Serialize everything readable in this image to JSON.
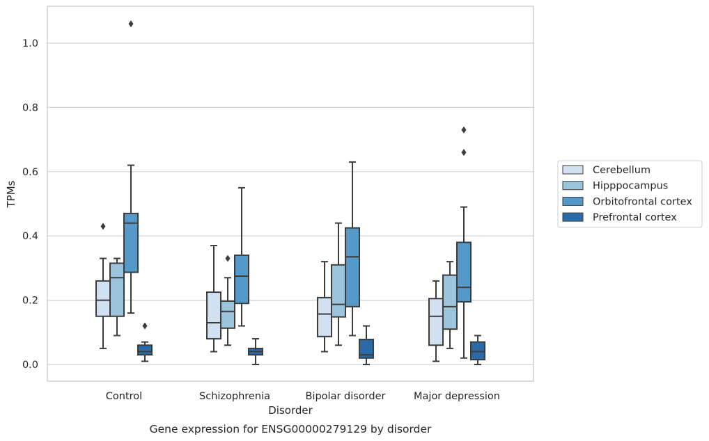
{
  "caption": "Gene expression for ENSG00000279129 by disorder",
  "colors": {
    "Cerebellum": "#d1e1f1",
    "Hipppocampus": "#9cc4dd",
    "Orbitofrontal cortex": "#5499c7",
    "Prefrontal cortex": "#2a6aa8",
    "line": "#3c3c3c",
    "grid": "#d0d0d0",
    "spine": "#c8c8c8"
  },
  "chart_data": {
    "type": "box",
    "title": "",
    "xlabel": "Disorder",
    "ylabel": "TPMs",
    "ylim": [
      -0.05,
      1.115
    ],
    "yticks": [
      0.0,
      0.2,
      0.4,
      0.6,
      0.8,
      1.0
    ],
    "ytick_labels": [
      "0.0",
      "0.2",
      "0.4",
      "0.6",
      "0.8",
      "1.0"
    ],
    "grid": "horizontal",
    "legend_position": "outside-right",
    "categories": [
      "Control",
      "Schizophrenia",
      "Bipolar disorder",
      "Major depression"
    ],
    "series": [
      {
        "name": "Cerebellum",
        "boxes": [
          {
            "whisker_low": 0.05,
            "q1": 0.15,
            "median": 0.2,
            "q3": 0.26,
            "whisker_high": 0.33,
            "outliers": [
              0.43
            ]
          },
          {
            "whisker_low": 0.04,
            "q1": 0.08,
            "median": 0.13,
            "q3": 0.225,
            "whisker_high": 0.37,
            "outliers": []
          },
          {
            "whisker_low": 0.04,
            "q1": 0.087,
            "median": 0.157,
            "q3": 0.208,
            "whisker_high": 0.32,
            "outliers": []
          },
          {
            "whisker_low": 0.01,
            "q1": 0.06,
            "median": 0.15,
            "q3": 0.205,
            "whisker_high": 0.26,
            "outliers": []
          }
        ]
      },
      {
        "name": "Hipppocampus",
        "boxes": [
          {
            "whisker_low": 0.09,
            "q1": 0.15,
            "median": 0.27,
            "q3": 0.315,
            "whisker_high": 0.33,
            "outliers": []
          },
          {
            "whisker_low": 0.06,
            "q1": 0.113,
            "median": 0.165,
            "q3": 0.197,
            "whisker_high": 0.27,
            "outliers": [
              0.33
            ]
          },
          {
            "whisker_low": 0.06,
            "q1": 0.148,
            "median": 0.187,
            "q3": 0.31,
            "whisker_high": 0.44,
            "outliers": []
          },
          {
            "whisker_low": 0.05,
            "q1": 0.11,
            "median": 0.18,
            "q3": 0.278,
            "whisker_high": 0.32,
            "outliers": []
          }
        ]
      },
      {
        "name": "Orbitofrontal cortex",
        "boxes": [
          {
            "whisker_low": 0.16,
            "q1": 0.287,
            "median": 0.44,
            "q3": 0.47,
            "whisker_high": 0.62,
            "outliers": [
              1.06
            ]
          },
          {
            "whisker_low": 0.12,
            "q1": 0.19,
            "median": 0.275,
            "q3": 0.34,
            "whisker_high": 0.55,
            "outliers": []
          },
          {
            "whisker_low": 0.09,
            "q1": 0.18,
            "median": 0.335,
            "q3": 0.425,
            "whisker_high": 0.63,
            "outliers": []
          },
          {
            "whisker_low": 0.02,
            "q1": 0.195,
            "median": 0.24,
            "q3": 0.38,
            "whisker_high": 0.49,
            "outliers": [
              0.66,
              0.73
            ]
          }
        ]
      },
      {
        "name": "Prefrontal cortex",
        "boxes": [
          {
            "whisker_low": 0.01,
            "q1": 0.03,
            "median": 0.04,
            "q3": 0.06,
            "whisker_high": 0.07,
            "outliers": [
              0.12
            ]
          },
          {
            "whisker_low": 0.0,
            "q1": 0.03,
            "median": 0.04,
            "q3": 0.05,
            "whisker_high": 0.08,
            "outliers": []
          },
          {
            "whisker_low": 0.0,
            "q1": 0.02,
            "median": 0.03,
            "q3": 0.078,
            "whisker_high": 0.12,
            "outliers": []
          },
          {
            "whisker_low": 0.0,
            "q1": 0.015,
            "median": 0.04,
            "q3": 0.07,
            "whisker_high": 0.09,
            "outliers": []
          }
        ]
      }
    ]
  }
}
